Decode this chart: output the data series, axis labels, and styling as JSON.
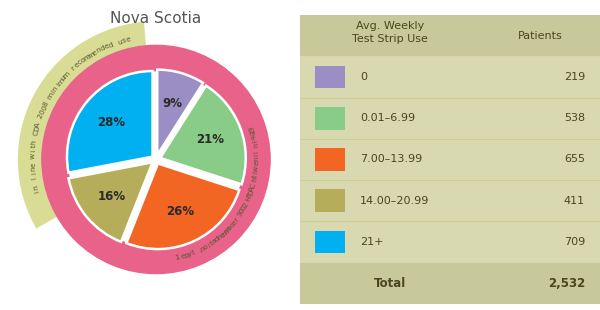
{
  "title": "Nova Scotia",
  "slices": [
    9,
    21,
    26,
    16,
    28
  ],
  "labels": [
    "9%",
    "21%",
    "26%",
    "16%",
    "28%"
  ],
  "colors": [
    "#9b8ec4",
    "#88cc88",
    "#f26522",
    "#b5ad5a",
    "#00b0f0"
  ],
  "ring_color": "#e8628a",
  "ring_color2": "#d4d98a",
  "table_bg": "#d8d9b0",
  "table_header_bg": "#c8c99a",
  "table_categories": [
    "0",
    "0.01–6.99",
    "7.00–13.99",
    "14.00–20.99",
    "21+"
  ],
  "table_values": [
    "219",
    "538",
    "655",
    "411",
    "709"
  ],
  "table_total": "2,532",
  "table_colors": [
    "#9b8ec4",
    "#88cc88",
    "#f26522",
    "#b5ad5a",
    "#00b0f0"
  ],
  "arc_text_right": "91% — In line with CADTH 2009 recommendation, type 1",
  "arc_text_left": "In line with CDA 2008 minimum recommended use"
}
